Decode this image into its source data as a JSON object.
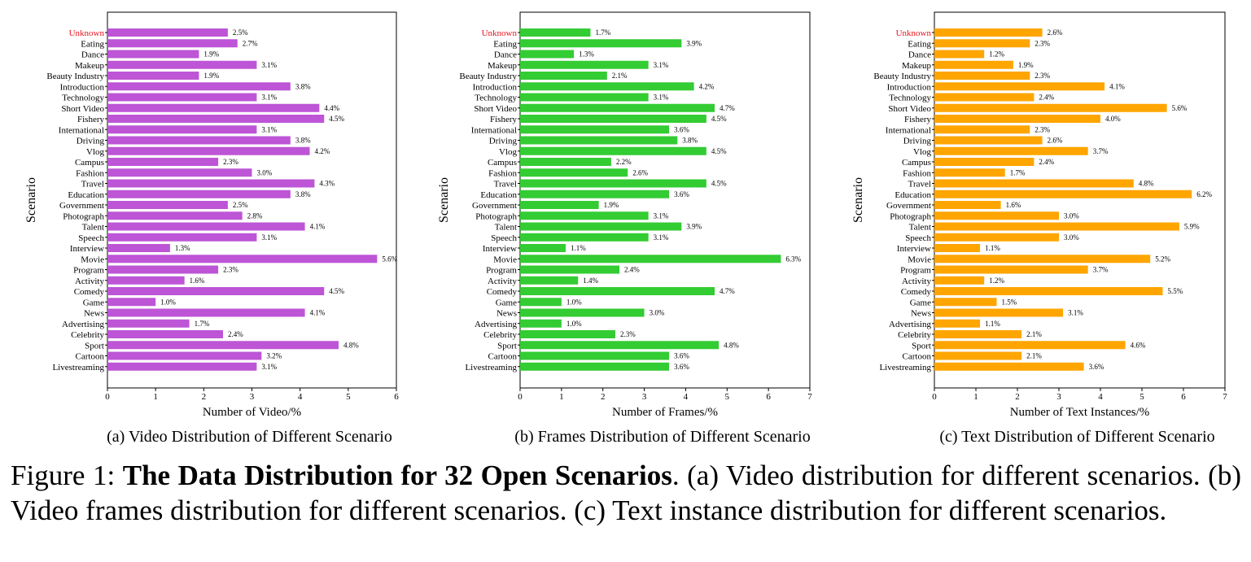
{
  "figure": {
    "label": "Figure 1:",
    "title": "The Data Distribution for 32 Open Scenarios",
    "description": ". (a) Video distribution for different scenarios. (b) Video frames distribution for different scenarios. (c) Text instance distribution for different scenarios."
  },
  "colors": {
    "highlight_label": "#e8141e",
    "axis": "#000000"
  },
  "chart_data": [
    {
      "type": "bar",
      "orientation": "horizontal",
      "subcaption": "(a) Video Distribution of Different Scenario",
      "xlabel": "Number of Video/%",
      "ylabel": "Scenario",
      "xlim": [
        0,
        6
      ],
      "xticks": [
        0,
        1,
        2,
        3,
        4,
        5,
        6
      ],
      "bar_color": "#bd55d6",
      "grid": false,
      "categories": [
        "Unknown",
        "Eating",
        "Dance",
        "Makeup",
        "Beauty Industry",
        "Introduction",
        "Technology",
        "Short Video",
        "Fishery",
        "International",
        "Driving",
        "Vlog",
        "Campus",
        "Fashion",
        "Travel",
        "Education",
        "Government",
        "Photograph",
        "Talent",
        "Speech",
        "Interview",
        "Movie",
        "Program",
        "Activity",
        "Comedy",
        "Game",
        "News",
        "Advertising",
        "Celebrity",
        "Sport",
        "Cartoon",
        "Livestreaming"
      ],
      "values": [
        2.5,
        2.7,
        1.9,
        3.1,
        1.9,
        3.8,
        3.1,
        4.4,
        4.5,
        3.1,
        3.8,
        4.2,
        2.3,
        3.0,
        4.3,
        3.8,
        2.5,
        2.8,
        4.1,
        3.1,
        1.3,
        5.6,
        2.3,
        1.6,
        4.5,
        1.0,
        4.1,
        1.7,
        2.4,
        4.8,
        3.2,
        3.1
      ],
      "data_labels": [
        "2.5%",
        "2.7%",
        "1.9%",
        "3.1%",
        "1.9%",
        "3.8%",
        "3.1%",
        "4.4%",
        "4.5%",
        "3.1%",
        "3.8%",
        "4.2%",
        "2.3%",
        "3.0%",
        "4.3%",
        "3.8%",
        "2.5%",
        "2.8%",
        "4.1%",
        "3.1%",
        "1.3%",
        "5.6%",
        "2.3%",
        "1.6%",
        "4.5%",
        "1.0%",
        "4.1%",
        "1.7%",
        "2.4%",
        "4.8%",
        "3.2%",
        "3.1%"
      ]
    },
    {
      "type": "bar",
      "orientation": "horizontal",
      "subcaption": "(b) Frames Distribution of Different Scenario",
      "xlabel": "Number of Frames/%",
      "ylabel": "Scenario",
      "xlim": [
        0,
        7
      ],
      "xticks": [
        0,
        1,
        2,
        3,
        4,
        5,
        6,
        7
      ],
      "bar_color": "#33cc33",
      "grid": false,
      "categories": [
        "Unknown",
        "Eating",
        "Dance",
        "Makeup",
        "Beauty Industry",
        "Introduction",
        "Technology",
        "Short Video",
        "Fishery",
        "International",
        "Driving",
        "Vlog",
        "Campus",
        "Fashion",
        "Travel",
        "Education",
        "Government",
        "Photograph",
        "Talent",
        "Speech",
        "Interview",
        "Movie",
        "Program",
        "Activity",
        "Comedy",
        "Game",
        "News",
        "Advertising",
        "Celebrity",
        "Sport",
        "Cartoon",
        "Livestreaming"
      ],
      "values": [
        1.7,
        3.9,
        1.3,
        3.1,
        2.1,
        4.2,
        3.1,
        4.7,
        4.5,
        3.6,
        3.8,
        4.5,
        2.2,
        2.6,
        4.5,
        3.6,
        1.9,
        3.1,
        3.9,
        3.1,
        1.1,
        6.3,
        2.4,
        1.4,
        4.7,
        1.0,
        3.0,
        1.0,
        2.3,
        4.8,
        3.6,
        3.6
      ],
      "data_labels": [
        "1.7%",
        "3.9%",
        "1.3%",
        "3.1%",
        "2.1%",
        "4.2%",
        "3.1%",
        "4.7%",
        "4.5%",
        "3.6%",
        "3.8%",
        "4.5%",
        "2.2%",
        "2.6%",
        "4.5%",
        "3.6%",
        "1.9%",
        "3.1%",
        "3.9%",
        "3.1%",
        "1.1%",
        "6.3%",
        "2.4%",
        "1.4%",
        "4.7%",
        "1.0%",
        "3.0%",
        "1.0%",
        "2.3%",
        "4.8%",
        "3.6%",
        "3.6%"
      ]
    },
    {
      "type": "bar",
      "orientation": "horizontal",
      "subcaption": "(c) Text Distribution of Different Scenario",
      "xlabel": "Number of Text Instances/%",
      "ylabel": "Scenario",
      "xlim": [
        0,
        7
      ],
      "xticks": [
        0,
        1,
        2,
        3,
        4,
        5,
        6,
        7
      ],
      "bar_color": "#ffa500",
      "grid": false,
      "categories": [
        "Unknown",
        "Eating",
        "Dance",
        "Makeup",
        "Beauty Industry",
        "Introduction",
        "Technology",
        "Short Video",
        "Fishery",
        "International",
        "Driving",
        "Vlog",
        "Campus",
        "Fashion",
        "Travel",
        "Education",
        "Government",
        "Photograph",
        "Talent",
        "Speech",
        "Interview",
        "Movie",
        "Program",
        "Activity",
        "Comedy",
        "Game",
        "News",
        "Advertising",
        "Celebrity",
        "Sport",
        "Cartoon",
        "Livestreaming"
      ],
      "values": [
        2.6,
        2.3,
        1.2,
        1.9,
        2.3,
        4.1,
        2.4,
        5.6,
        4.0,
        2.3,
        2.6,
        3.7,
        2.4,
        1.7,
        4.8,
        6.2,
        1.6,
        3.0,
        5.9,
        3.0,
        1.1,
        5.2,
        3.7,
        1.2,
        5.5,
        1.5,
        3.1,
        1.1,
        2.1,
        4.6,
        2.1,
        3.6
      ],
      "data_labels": [
        "2.6%",
        "2.3%",
        "1.2%",
        "1.9%",
        "2.3%",
        "4.1%",
        "2.4%",
        "5.6%",
        "4.0%",
        "2.3%",
        "2.6%",
        "3.7%",
        "2.4%",
        "1.7%",
        "4.8%",
        "6.2%",
        "1.6%",
        "3.0%",
        "5.9%",
        "3.0%",
        "1.1%",
        "5.2%",
        "3.7%",
        "1.2%",
        "5.5%",
        "1.5%",
        "3.1%",
        "1.1%",
        "2.1%",
        "4.6%",
        "2.1%",
        "3.6%"
      ]
    }
  ]
}
